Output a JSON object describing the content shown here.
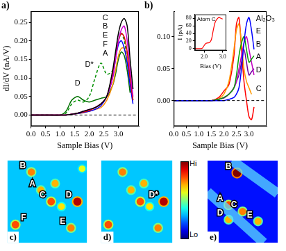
{
  "chart_data": [
    {
      "panel": "a)",
      "type": "line",
      "x_label": "Sample Bias (V)",
      "y_label": "dI/dV (nA/V)",
      "xlim": [
        0,
        3.7
      ],
      "ylim": [
        -0.03,
        0.28
      ],
      "xticks": [
        {
          "value": 0,
          "label": "0.0"
        },
        {
          "value": 0.5,
          "label": "0.5"
        },
        {
          "value": 1,
          "label": "1.0"
        },
        {
          "value": 1.5,
          "label": "1.5"
        },
        {
          "value": 2,
          "label": "2.0"
        },
        {
          "value": 2.5,
          "label": "2.5"
        },
        {
          "value": 3,
          "label": "3.0"
        }
      ],
      "yticks": [
        {
          "value": 0,
          "label": "0.00"
        },
        {
          "value": 0.05,
          "label": "0.05"
        },
        {
          "value": 0.1,
          "label": "0.10"
        },
        {
          "value": 0.15,
          "label": "0.15"
        },
        {
          "value": 0.2,
          "label": "0.20"
        },
        {
          "value": 0.25,
          "label": "0.25"
        }
      ],
      "grid": false,
      "hline": 0,
      "x": [
        0,
        0.5,
        1.0,
        1.2,
        1.4,
        1.6,
        1.8,
        2.0,
        2.2,
        2.4,
        2.6,
        2.8,
        2.9,
        3.0,
        3.1,
        3.2,
        3.3,
        3.4,
        3.5
      ],
      "series": [
        {
          "name": "C",
          "color": "#000000",
          "values": [
            0,
            0,
            0,
            0,
            0.002,
            0.005,
            0.01,
            0.015,
            0.02,
            0.03,
            0.05,
            0.12,
            0.17,
            0.22,
            0.25,
            0.26,
            0.24,
            0.15,
            0.07
          ]
        },
        {
          "name": "B",
          "color": "#d000d0",
          "values": [
            0,
            0,
            0,
            0,
            0.002,
            0.005,
            0.01,
            0.015,
            0.02,
            0.03,
            0.05,
            0.1,
            0.15,
            0.2,
            0.23,
            0.24,
            0.2,
            0.12,
            0.05
          ]
        },
        {
          "name": "E",
          "color": "#e00000",
          "values": [
            0,
            0,
            0,
            0,
            0.002,
            0.005,
            0.008,
            0.012,
            0.02,
            0.03,
            0.05,
            0.11,
            0.16,
            0.2,
            0.22,
            0.21,
            0.17,
            0.1,
            0.04
          ]
        },
        {
          "name": "F",
          "color": "#0000ff",
          "values": [
            0,
            0,
            0,
            0,
            0.002,
            0.004,
            0.007,
            0.01,
            0.015,
            0.025,
            0.05,
            0.1,
            0.15,
            0.19,
            0.2,
            0.18,
            0.14,
            0.08,
            0.03
          ]
        },
        {
          "name": "A",
          "color": "#ff8c00",
          "values": [
            0,
            0,
            0,
            0,
            0.002,
            0.004,
            0.006,
            0.01,
            0.015,
            0.02,
            0.04,
            0.08,
            0.12,
            0.16,
            0.18,
            0.18,
            0.15,
            0.1,
            0.04
          ]
        },
        {
          "name": "D*",
          "color": "#009000",
          "line_style": "dashed",
          "values": [
            0,
            0,
            0,
            0.005,
            0.03,
            0.04,
            0.035,
            0.05,
            0.1,
            0.14,
            0.11,
            0.12,
            0.16,
            0.2,
            0.22,
            0.2,
            0.15,
            0.1,
            null
          ]
        },
        {
          "name": "D",
          "color": "#007000",
          "values": [
            0,
            0,
            0,
            0.01,
            0.04,
            0.05,
            0.04,
            0.035,
            0.04,
            0.045,
            0.05,
            0.08,
            0.11,
            0.15,
            0.17,
            0.16,
            0.12,
            0.06,
            null
          ]
        }
      ],
      "annotations": [
        {
          "text": "C",
          "x": 2.55,
          "y": 0.262
        },
        {
          "text": "B",
          "x": 2.55,
          "y": 0.238
        },
        {
          "text": "E",
          "x": 2.55,
          "y": 0.214
        },
        {
          "text": "F",
          "x": 2.55,
          "y": 0.19
        },
        {
          "text": "A",
          "x": 2.55,
          "y": 0.166
        },
        {
          "text": "D*",
          "x": 2.0,
          "y": 0.135
        },
        {
          "text": "D",
          "x": 1.6,
          "y": 0.085
        }
      ]
    },
    {
      "panel": "b)",
      "type": "line",
      "x_label": "Sample Bias (V)",
      "xlim": [
        0,
        3.7
      ],
      "ylim": [
        -0.04,
        0.14
      ],
      "xticks": [
        {
          "value": 0,
          "label": "0.0"
        },
        {
          "value": 0.5,
          "label": "0.5"
        },
        {
          "value": 1,
          "label": "1.0"
        },
        {
          "value": 1.5,
          "label": "1.5"
        },
        {
          "value": 2,
          "label": "2.0"
        },
        {
          "value": 2.5,
          "label": "2.5"
        },
        {
          "value": 3,
          "label": "3.0"
        }
      ],
      "yticks": [
        {
          "value": 0,
          "label": "0.00"
        },
        {
          "value": 0.05,
          "label": "0.05"
        },
        {
          "value": 0.1,
          "label": "0.10"
        }
      ],
      "grid": false,
      "hline": 0,
      "x": [
        0,
        0.5,
        1.0,
        1.5,
        1.8,
        2.0,
        2.2,
        2.4,
        2.5,
        2.6,
        2.7,
        2.8,
        2.9,
        3.0,
        3.1,
        3.2
      ],
      "series": [
        {
          "name": "Al₂O₃",
          "color": "#0000ff",
          "values": [
            0,
            0,
            0,
            0,
            0,
            0,
            0.002,
            0.005,
            0.01,
            0.02,
            0.05,
            0.09,
            0.12,
            0.13,
            0.11,
            0.08
          ]
        },
        {
          "name": "E",
          "color": "#00a000",
          "values": [
            0,
            0,
            0,
            0,
            0.002,
            0.005,
            0.01,
            0.02,
            0.04,
            0.07,
            0.09,
            0.1,
            0.08,
            0.06,
            0.065,
            0.07
          ]
        },
        {
          "name": "B",
          "color": "#c000c0",
          "values": [
            0,
            0,
            0,
            0,
            0.002,
            0.005,
            0.01,
            0.02,
            0.03,
            0.05,
            0.07,
            0.09,
            0.1,
            0.08,
            0.06,
            0.04
          ]
        },
        {
          "name": "A",
          "color": "#7000a0",
          "values": [
            0,
            0,
            0,
            0,
            0.002,
            0.004,
            0.01,
            0.02,
            0.03,
            0.04,
            0.06,
            0.08,
            0.06,
            0.04,
            0.045,
            0.05
          ]
        },
        {
          "name": "D",
          "color": "#ff9900",
          "values": [
            0,
            0,
            0,
            0,
            0.003,
            0.01,
            0.03,
            0.08,
            0.11,
            0.12,
            0.09,
            0.05,
            0.03,
            0.02,
            0.01,
            null
          ]
        },
        {
          "name": "C",
          "color": "#ff0000",
          "values": [
            0,
            0,
            0,
            0,
            0.005,
            0.015,
            0.025,
            0.07,
            0.12,
            0.13,
            0.08,
            0.03,
            0,
            -0.025,
            -0.03,
            -0.01
          ]
        }
      ],
      "annotations": [
        {
          "text": "Al₂O₃",
          "x": 3.28,
          "y": 0.128
        },
        {
          "text": "E",
          "x": 3.28,
          "y": 0.108
        },
        {
          "text": "B",
          "x": 3.28,
          "y": 0.088
        },
        {
          "text": "A",
          "x": 3.28,
          "y": 0.068
        },
        {
          "text": "D",
          "x": 3.28,
          "y": 0.048
        },
        {
          "text": "C",
          "x": 3.28,
          "y": 0.018
        }
      ]
    },
    {
      "type": "line",
      "title": "Atom C",
      "x_label": "Bias (V)",
      "y_label": "I (pA)",
      "xlim": [
        1.5,
        3.2
      ],
      "ylim": [
        -5,
        90
      ],
      "xticks": [
        {
          "value": 2,
          "label": "2.0"
        },
        {
          "value": 3,
          "label": "3.0"
        }
      ],
      "yticks": [
        0,
        20,
        40,
        60,
        80
      ],
      "grid": false,
      "x": [
        1.5,
        1.8,
        1.9,
        2.0,
        2.1,
        2.2,
        2.3,
        2.4,
        2.5,
        2.6,
        2.7,
        2.8,
        2.9,
        3.0
      ],
      "series": [
        {
          "name": "Atom C",
          "color": "#ff0000",
          "values": [
            0,
            0,
            1,
            8,
            14,
            15,
            16,
            25,
            50,
            70,
            78,
            82,
            80,
            78
          ]
        }
      ]
    },
    {
      "panel": "c)",
      "type": "scatter",
      "tick_labels": false,
      "xlim": [
        0,
        1
      ],
      "ylim": [
        0,
        1
      ],
      "points": [
        {
          "label": "B",
          "x": 0.3,
          "y": 0.86,
          "intensity": 0.75
        },
        {
          "label": "A",
          "x": 0.42,
          "y": 0.64,
          "intensity": 0.7
        },
        {
          "label": null,
          "x": 0.6,
          "y": 0.72,
          "intensity": 0.7
        },
        {
          "label": "C",
          "x": 0.55,
          "y": 0.5,
          "intensity": 0.8
        },
        {
          "label": "D",
          "x": 0.88,
          "y": 0.5,
          "intensity": 0.95,
          "marker": "x"
        },
        {
          "label": "F",
          "x": 0.1,
          "y": 0.22,
          "intensity": 0.8
        },
        {
          "label": "E",
          "x": 0.8,
          "y": 0.18,
          "intensity": 0.75
        },
        {
          "label": null,
          "x": 0.68,
          "y": 0.44,
          "intensity": 0.65
        },
        {
          "label": null,
          "x": 0.94,
          "y": 0.9,
          "intensity": 0.6
        }
      ]
    },
    {
      "panel": "d)",
      "type": "scatter",
      "tick_labels": false,
      "xlim": [
        0,
        1
      ],
      "ylim": [
        0,
        1
      ],
      "points": [
        {
          "label": null,
          "x": 0.3,
          "y": 0.86,
          "intensity": 0.75
        },
        {
          "label": null,
          "x": 0.42,
          "y": 0.64,
          "intensity": 0.7
        },
        {
          "label": null,
          "x": 0.6,
          "y": 0.72,
          "intensity": 0.7
        },
        {
          "label": null,
          "x": 0.55,
          "y": 0.5,
          "intensity": 0.8
        },
        {
          "label": "D*",
          "x": 0.88,
          "y": 0.5,
          "intensity": 0.95,
          "marker": "x"
        },
        {
          "label": null,
          "x": 0.1,
          "y": 0.22,
          "intensity": 0.8
        },
        {
          "label": null,
          "x": 0.8,
          "y": 0.18,
          "intensity": 0.75
        },
        {
          "label": null,
          "x": 0.68,
          "y": 0.44,
          "intensity": 0.65
        }
      ]
    },
    {
      "panel": "e)",
      "type": "scatter",
      "tick_labels": false,
      "xlim": [
        0,
        1
      ],
      "ylim": [
        0,
        1
      ],
      "ridges": [
        [
          [
            0.35,
            1.0
          ],
          [
            1.0,
            0.6
          ]
        ],
        [
          [
            0.0,
            0.62
          ],
          [
            0.8,
            0.0
          ]
        ]
      ],
      "points": [
        {
          "label": "B",
          "x": 0.42,
          "y": 0.85,
          "intensity": 1.0
        },
        {
          "label": "A",
          "x": 0.3,
          "y": 0.46,
          "intensity": 0.8
        },
        {
          "label": "D",
          "x": 0.3,
          "y": 0.28,
          "intensity": 0.7
        },
        {
          "label": "C",
          "x": 0.5,
          "y": 0.38,
          "intensity": 0.75
        },
        {
          "label": "E",
          "x": 0.72,
          "y": 0.26,
          "intensity": 0.7
        }
      ]
    }
  ],
  "colorbar": {
    "high": "Hi",
    "low": "Lo"
  }
}
